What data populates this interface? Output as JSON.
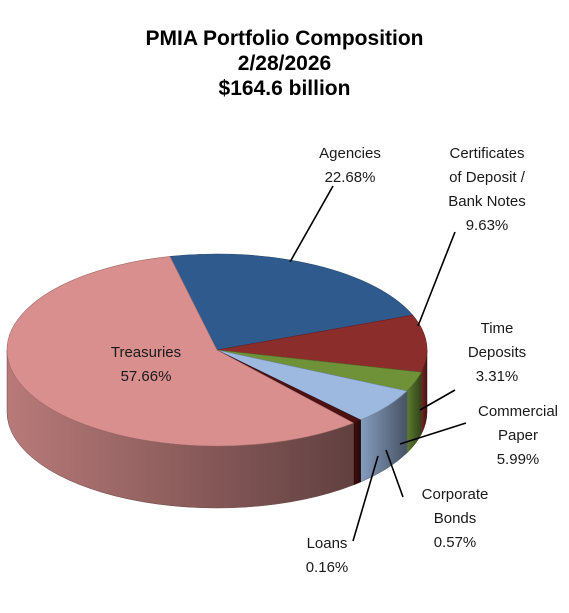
{
  "chart_data": {
    "type": "pie",
    "title_lines": [
      "PMIA  Portfolio Composition",
      "2/28/2026",
      "$164.6 billion"
    ],
    "slices": [
      {
        "name": "Agencies",
        "value": 22.68,
        "label_lines": [
          "Agencies",
          "22.68%"
        ],
        "color": "#2f5a8e"
      },
      {
        "name": "Certificates of Deposit / Bank Notes",
        "value": 9.63,
        "label_lines": [
          "Certificates",
          "of Deposit /",
          "Bank Notes",
          "9.63%"
        ],
        "color": "#8b2d2b"
      },
      {
        "name": "Time Deposits",
        "value": 3.31,
        "label_lines": [
          "Time",
          "Deposits",
          "3.31%"
        ],
        "color": "#6f9238"
      },
      {
        "name": "Commercial Paper",
        "value": 5.99,
        "label_lines": [
          "Commercial",
          "Paper",
          "5.99%"
        ],
        "color": "#9db9e0"
      },
      {
        "name": "Corporate Bonds",
        "value": 0.57,
        "label_lines": [
          "Corporate",
          "Bonds",
          "0.57%"
        ],
        "color": "#4a1312"
      },
      {
        "name": "Loans",
        "value": 0.16,
        "label_lines": [
          "Loans",
          "0.16%"
        ],
        "color": "#5e0f12"
      },
      {
        "name": "Treasuries",
        "value": 57.66,
        "label_lines": [
          "Treasuries",
          "57.66%"
        ],
        "color": "#d88f8e"
      }
    ],
    "legend": "none"
  }
}
